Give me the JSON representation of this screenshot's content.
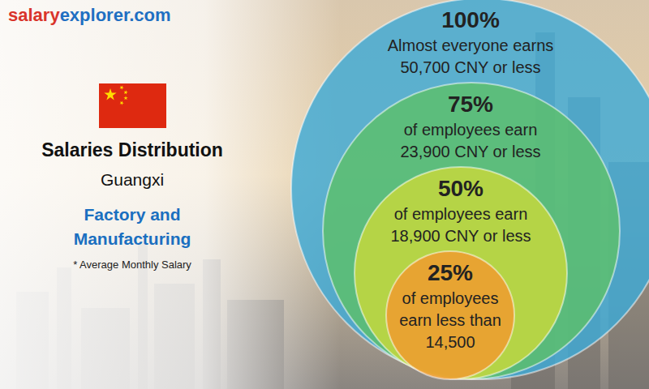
{
  "chart_data": {
    "type": "nested_circles",
    "source_parts": [
      "salary",
      "explorer.com"
    ],
    "title": "Salaries Distribution",
    "subtitle": "Guangxi",
    "category": [
      "Factory and",
      "Manufacturing"
    ],
    "note": "* Average Monthly Salary",
    "percentiles": [
      100,
      75,
      50,
      25
    ],
    "percentile_labels": [
      "100%",
      "75%",
      "50%",
      "25%"
    ],
    "captions": [
      [
        "Almost everyone earns"
      ],
      [
        "of employees earn"
      ],
      [
        "of employees earn"
      ],
      [
        "of employees",
        "earn less than"
      ]
    ],
    "values": [
      50700,
      23900,
      18900,
      14500
    ],
    "value_labels": [
      "50,700 CNY or less",
      "23,900 CNY or less",
      "18,900 CNY or less",
      "14,500"
    ],
    "colors": [
      "#3ea9d6",
      "#5dbf6a",
      "#c9d93a",
      "#f29a2e"
    ]
  }
}
